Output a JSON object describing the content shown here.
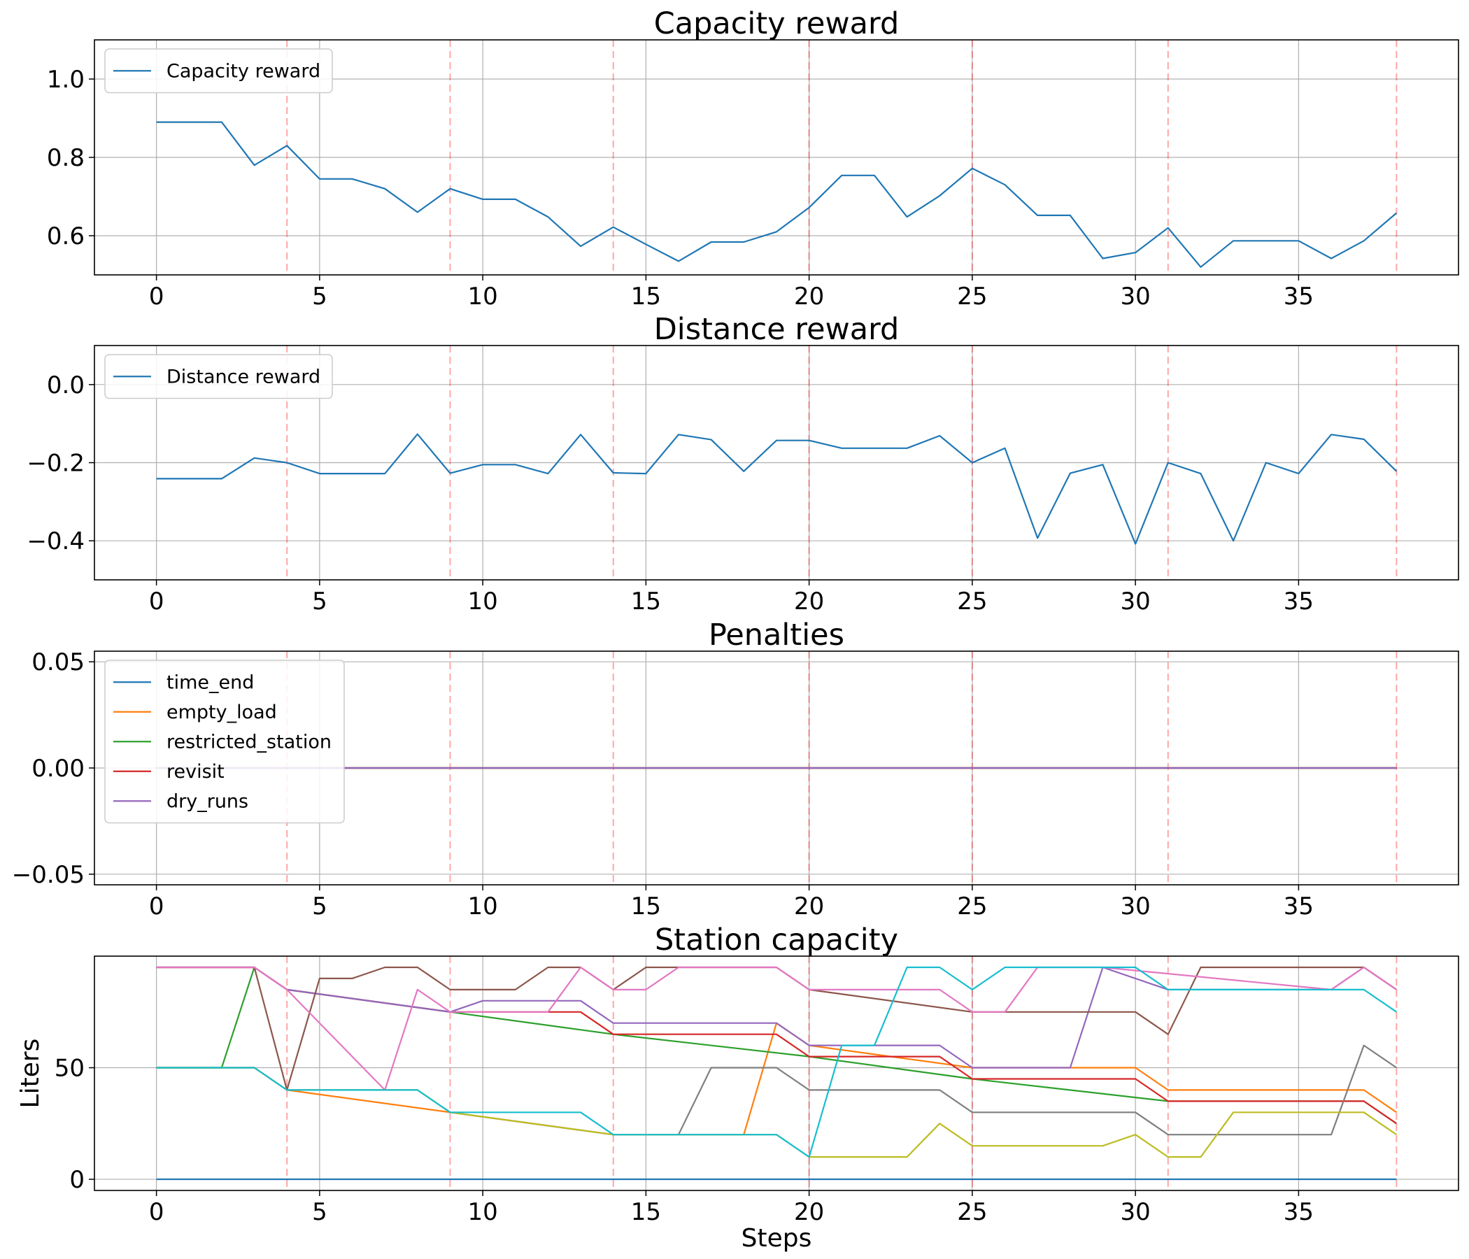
{
  "chart_data": [
    {
      "type": "line",
      "title": "Capacity reward",
      "xlabel": "",
      "ylabel": "",
      "xlim": [
        -1.9,
        39.9
      ],
      "ylim": [
        0.5,
        1.1
      ],
      "xticks": [
        0,
        5,
        10,
        15,
        20,
        25,
        30,
        35
      ],
      "yticks": [
        0.6,
        0.8,
        1.0
      ],
      "ytick_labels": [
        "0.6",
        "0.8",
        "1.0"
      ],
      "grid": true,
      "legend_position": "upper-left",
      "vlines": [
        4,
        9,
        14,
        20,
        25,
        31,
        38
      ],
      "series": [
        {
          "name": "Capacity reward",
          "color": "#1f77b4",
          "x": [
            0,
            1,
            2,
            3,
            4,
            5,
            6,
            7,
            8,
            9,
            10,
            11,
            12,
            13,
            14,
            15,
            16,
            17,
            18,
            19,
            20,
            21,
            22,
            23,
            24,
            25,
            26,
            27,
            28,
            29,
            30,
            31,
            32,
            33,
            34,
            35,
            36,
            37,
            38
          ],
          "y": [
            0.89,
            0.89,
            0.89,
            0.78,
            0.83,
            0.745,
            0.745,
            0.72,
            0.66,
            0.72,
            0.693,
            0.693,
            0.648,
            0.573,
            0.622,
            0.578,
            0.535,
            0.584,
            0.584,
            0.61,
            0.672,
            0.754,
            0.754,
            0.648,
            0.702,
            0.772,
            0.73,
            0.652,
            0.652,
            0.542,
            0.557,
            0.62,
            0.52,
            0.587,
            0.587,
            0.587,
            0.542,
            0.587,
            0.658
          ]
        }
      ]
    },
    {
      "type": "line",
      "title": "Distance reward",
      "xlabel": "",
      "ylabel": "",
      "xlim": [
        -1.9,
        39.9
      ],
      "ylim": [
        -0.5,
        0.1
      ],
      "xticks": [
        0,
        5,
        10,
        15,
        20,
        25,
        30,
        35
      ],
      "yticks": [
        -0.4,
        -0.2,
        0.0
      ],
      "ytick_labels": [
        "−0.4",
        "−0.2",
        "0.0"
      ],
      "grid": true,
      "legend_position": "upper-left",
      "vlines": [
        4,
        9,
        14,
        20,
        25,
        31,
        38
      ],
      "series": [
        {
          "name": "Distance reward",
          "color": "#1f77b4",
          "x": [
            0,
            1,
            2,
            3,
            4,
            5,
            6,
            7,
            8,
            9,
            10,
            11,
            12,
            13,
            14,
            15,
            16,
            17,
            18,
            19,
            20,
            21,
            22,
            23,
            24,
            25,
            26,
            27,
            28,
            29,
            30,
            31,
            32,
            33,
            34,
            35,
            36,
            37,
            38
          ],
          "y": [
            -0.241,
            -0.241,
            -0.241,
            -0.188,
            -0.2,
            -0.228,
            -0.228,
            -0.228,
            -0.127,
            -0.227,
            -0.205,
            -0.205,
            -0.228,
            -0.128,
            -0.226,
            -0.228,
            -0.128,
            -0.141,
            -0.222,
            -0.143,
            -0.143,
            -0.163,
            -0.163,
            -0.163,
            -0.131,
            -0.2,
            -0.163,
            -0.393,
            -0.227,
            -0.205,
            -0.408,
            -0.2,
            -0.228,
            -0.4,
            -0.2,
            -0.228,
            -0.128,
            -0.14,
            -0.222
          ]
        }
      ]
    },
    {
      "type": "line",
      "title": "Penalties",
      "xlabel": "",
      "ylabel": "",
      "xlim": [
        -1.9,
        39.9
      ],
      "ylim": [
        -0.055,
        0.055
      ],
      "xticks": [
        0,
        5,
        10,
        15,
        20,
        25,
        30,
        35
      ],
      "yticks": [
        -0.05,
        0.0,
        0.05
      ],
      "ytick_labels": [
        "−0.05",
        "0.00",
        "0.05"
      ],
      "grid": true,
      "legend_position": "upper-left",
      "vlines": [
        4,
        9,
        14,
        20,
        25,
        31,
        38
      ],
      "series": [
        {
          "name": "time_end",
          "color": "#1f77b4",
          "x": [
            0,
            38
          ],
          "y": [
            0,
            0
          ]
        },
        {
          "name": "empty_load",
          "color": "#ff7f0e",
          "x": [
            0,
            38
          ],
          "y": [
            0,
            0
          ]
        },
        {
          "name": "restricted_station",
          "color": "#2ca02c",
          "x": [
            0,
            38
          ],
          "y": [
            0,
            0
          ]
        },
        {
          "name": "revisit",
          "color": "#d62728",
          "x": [
            0,
            38
          ],
          "y": [
            0,
            0
          ]
        },
        {
          "name": "dry_runs",
          "color": "#9467bd",
          "x": [
            0,
            38
          ],
          "y": [
            0,
            0
          ]
        }
      ]
    },
    {
      "type": "line",
      "title": "Station capacity",
      "xlabel": "Steps",
      "ylabel": "Liters",
      "xlim": [
        -1.9,
        39.9
      ],
      "ylim": [
        -5,
        100
      ],
      "xticks": [
        0,
        5,
        10,
        15,
        20,
        25,
        30,
        35
      ],
      "yticks": [
        0,
        50
      ],
      "ytick_labels": [
        "0",
        "50"
      ],
      "grid": true,
      "vlines": [
        4,
        9,
        14,
        20,
        25,
        31,
        38
      ],
      "series": [
        {
          "color": "#1f77b4",
          "x": [
            0,
            38
          ],
          "y": [
            0,
            0
          ]
        },
        {
          "color": "#ff7f0e",
          "x": [
            0,
            3,
            4,
            9,
            14,
            18,
            19,
            20,
            25,
            30,
            31,
            37,
            38
          ],
          "y": [
            50,
            50,
            40,
            30,
            20,
            20,
            70,
            60,
            50,
            50,
            40,
            40,
            30
          ]
        },
        {
          "color": "#2ca02c",
          "x": [
            0,
            2,
            3,
            4,
            9,
            14,
            20,
            25,
            31,
            37,
            38
          ],
          "y": [
            50,
            50,
            95,
            85,
            75,
            65,
            55,
            45,
            35,
            35,
            25
          ]
        },
        {
          "color": "#d62728",
          "x": [
            0,
            3,
            4,
            9,
            13,
            14,
            19,
            20,
            24,
            25,
            30,
            31,
            37,
            38
          ],
          "y": [
            95,
            95,
            85,
            75,
            75,
            65,
            65,
            55,
            55,
            45,
            45,
            35,
            35,
            25
          ]
        },
        {
          "color": "#9467bd",
          "x": [
            0,
            3,
            4,
            9,
            10,
            13,
            14,
            19,
            20,
            24,
            25,
            28,
            29,
            31,
            36,
            37,
            38
          ],
          "y": [
            95,
            95,
            85,
            75,
            80,
            80,
            70,
            70,
            60,
            60,
            50,
            50,
            95,
            85,
            85,
            95,
            85
          ]
        },
        {
          "color": "#8c564b",
          "x": [
            0,
            3,
            4,
            5,
            6,
            7,
            8,
            9,
            11,
            12,
            13,
            14,
            15,
            19,
            20,
            25,
            30,
            31,
            32,
            37,
            38
          ],
          "y": [
            95,
            95,
            40,
            90,
            90,
            95,
            95,
            85,
            85,
            95,
            95,
            85,
            95,
            95,
            85,
            75,
            75,
            65,
            95,
            95,
            85
          ]
        },
        {
          "color": "#e377c2",
          "x": [
            0,
            3,
            4,
            7,
            8,
            9,
            12,
            13,
            14,
            15,
            16,
            19,
            20,
            24,
            25,
            26,
            27,
            29,
            36,
            37,
            38
          ],
          "y": [
            95,
            95,
            85,
            40,
            85,
            75,
            75,
            95,
            85,
            85,
            95,
            95,
            85,
            85,
            75,
            75,
            95,
            95,
            85,
            95,
            85
          ]
        },
        {
          "color": "#7f7f7f",
          "x": [
            0,
            3,
            4,
            8,
            9,
            14,
            16,
            17,
            19,
            20,
            24,
            25,
            30,
            31,
            36,
            37,
            38
          ],
          "y": [
            50,
            50,
            40,
            40,
            30,
            20,
            20,
            50,
            50,
            40,
            40,
            30,
            30,
            20,
            20,
            60,
            50
          ]
        },
        {
          "color": "#bcbd22",
          "x": [
            0,
            3,
            4,
            8,
            9,
            14,
            19,
            20,
            23,
            24,
            25,
            29,
            30,
            31,
            32,
            33,
            37,
            38
          ],
          "y": [
            50,
            50,
            40,
            40,
            30,
            20,
            20,
            10,
            10,
            25,
            15,
            15,
            20,
            10,
            10,
            30,
            30,
            20
          ]
        },
        {
          "color": "#17becf",
          "x": [
            0,
            3,
            4,
            8,
            9,
            13,
            14,
            19,
            20,
            21,
            22,
            23,
            24,
            25,
            26,
            30,
            31,
            37,
            38
          ],
          "y": [
            50,
            50,
            40,
            40,
            30,
            30,
            20,
            20,
            10,
            60,
            60,
            95,
            95,
            85,
            95,
            95,
            85,
            85,
            75
          ]
        }
      ]
    }
  ]
}
